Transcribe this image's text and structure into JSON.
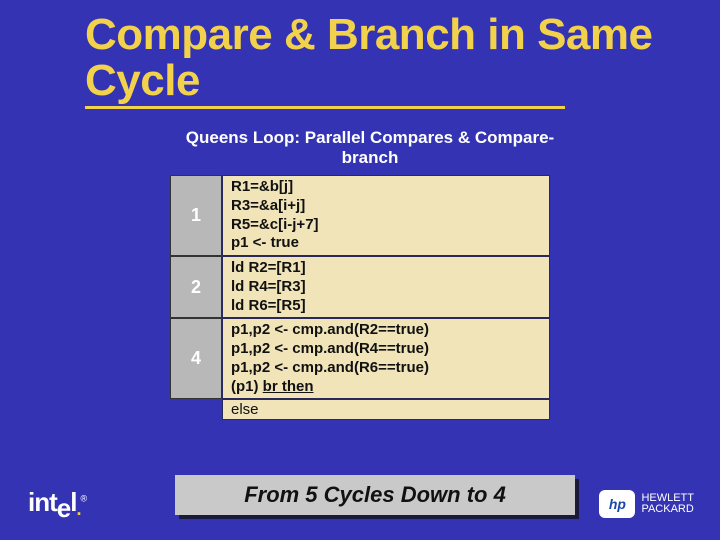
{
  "colors": {
    "background": "#3333b3",
    "title": "#f2d24a",
    "subtitle": "#ffffff",
    "numcell_bg": "#b8b8b8",
    "codebox_bg": "#f0e4b8",
    "code_text": "#111111",
    "conclusion_bg": "#c9c9c9",
    "shadow": "#1a1a3a"
  },
  "title": "Compare & Branch in Same Cycle",
  "subtitle": "Queens Loop: Parallel Compares & Compare-branch",
  "figure": {
    "font_size": 15,
    "font_weight": 700,
    "groups": [
      {
        "num": "1",
        "lines": [
          "R1=&b[j]",
          "R3=&a[i+j]",
          "R5=&c[i-j+7]",
          "p1 <- true"
        ]
      },
      {
        "num": "2",
        "lines": [
          "ld R2=[R1]",
          "ld R4=[R3]",
          "ld R6=[R5]"
        ]
      },
      {
        "num": "4",
        "lines": [
          "p1,p2 <- cmp.and(R2==true)",
          "p1,p2 <- cmp.and(R4==true)",
          "p1,p2 <- cmp.and(R6==true)"
        ]
      }
    ],
    "branch_prefix": "(p1) ",
    "branch_text": "br then",
    "else_text": "else"
  },
  "conclusion": "From 5 Cycles Down to 4",
  "logos": {
    "intel": "intel",
    "hp_badge": "hp",
    "hp_line1": "HEWLETT",
    "hp_line2": "PACKARD"
  }
}
